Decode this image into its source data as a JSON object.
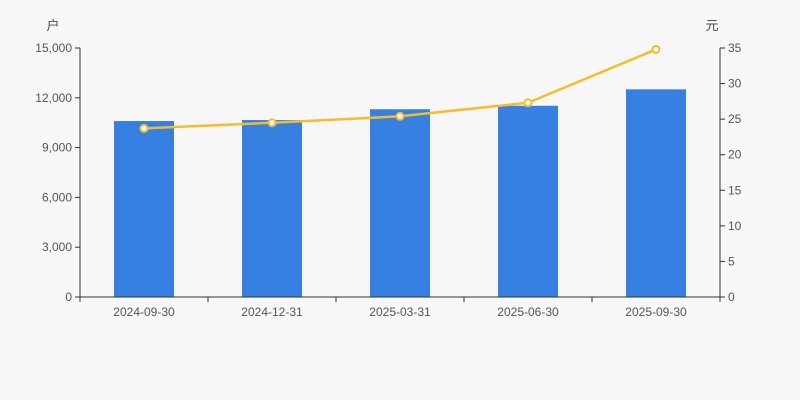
{
  "chart_data": {
    "type": "bar",
    "title": "",
    "categories": [
      "2024-09-30",
      "2024-12-31",
      "2025-03-31",
      "2025-06-30",
      "2025-09-30"
    ],
    "series": [
      {
        "name": "households-bars",
        "type": "bar",
        "axis": "left",
        "color": "#3580e0",
        "values": [
          10600,
          10660,
          11310,
          11520,
          12510
        ]
      },
      {
        "name": "per-share-value-line",
        "type": "line",
        "axis": "right",
        "color": "#f8bb2a",
        "marker_fill": "#ffffff",
        "values": [
          23.7,
          24.5,
          25.4,
          27.3,
          34.8
        ]
      }
    ],
    "left_axis": {
      "unit": "户",
      "min": 0,
      "max": 15000,
      "tick_step": 3000,
      "tick_labels": [
        "0",
        "3,000",
        "6,000",
        "9,000",
        "12,000",
        "15,000"
      ]
    },
    "right_axis": {
      "unit": "元",
      "min": 0,
      "max": 35,
      "tick_step": 5,
      "tick_labels": [
        "0",
        "5",
        "10",
        "15",
        "20",
        "25",
        "30",
        "35"
      ]
    },
    "grid": false,
    "legend": false,
    "colors": {
      "background": "#f7f7f7",
      "axis": "#333333",
      "labels": "#555555"
    }
  }
}
